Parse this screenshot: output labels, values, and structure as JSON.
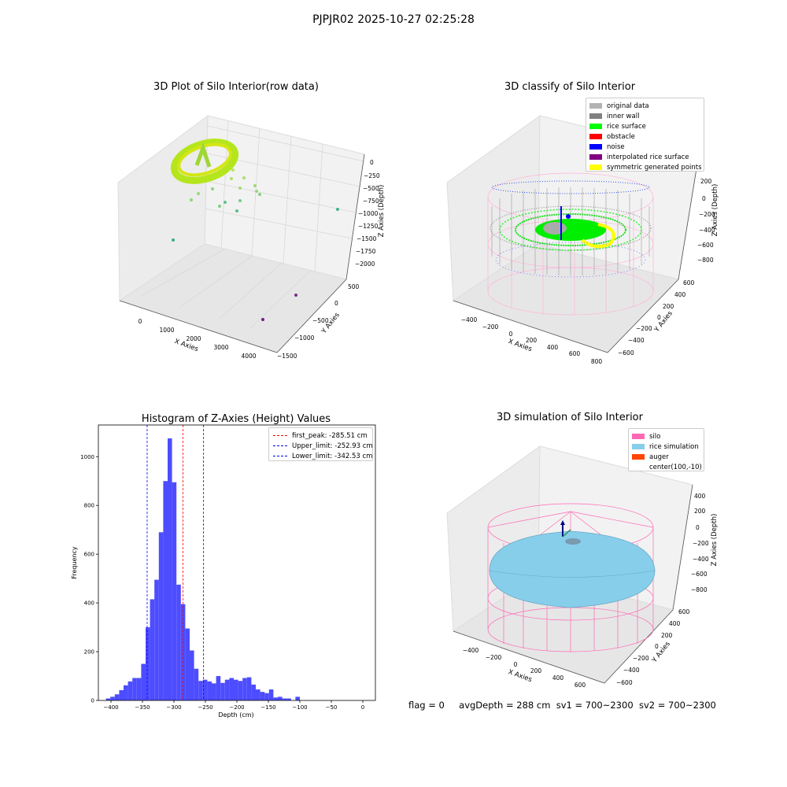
{
  "figure": {
    "suptitle": "PJPJR02 2025-10-27 02:25:28"
  },
  "panels": {
    "raw": {
      "title": "3D Plot of Silo Interior(row data)",
      "xlabel": "X Axies",
      "ylabel": "Y Axies",
      "zlabel": "Z Axies (Depth)",
      "xticks": [
        "0",
        "1000",
        "2000",
        "3000",
        "4000"
      ],
      "yticks": [
        "500",
        "0",
        "−500",
        "−1000",
        "−1500"
      ],
      "zticks": [
        "0",
        "−250",
        "−500",
        "−750",
        "−1000",
        "−1250",
        "−1500",
        "−1750",
        "−2000"
      ]
    },
    "classify": {
      "title": "3D classify of Silo Interior",
      "xlabel": "X Axies",
      "ylabel": "Y Axies",
      "zlabel": "Z Axies (Depth)",
      "xticks": [
        "−400",
        "−200",
        "0",
        "200",
        "400",
        "600",
        "800"
      ],
      "yticks": [
        "600",
        "400",
        "200",
        "0",
        "−200",
        "−400",
        "−600"
      ],
      "zticks": [
        "200",
        "0",
        "−200",
        "−400",
        "−600",
        "−800"
      ],
      "legend": [
        {
          "label": "original data",
          "color": "#b3b3b3"
        },
        {
          "label": "inner wall",
          "color": "#808080"
        },
        {
          "label": "rice surface",
          "color": "#00ff00"
        },
        {
          "label": "obstacle",
          "color": "#ff0000"
        },
        {
          "label": "noise",
          "color": "#0000ff"
        },
        {
          "label": "interpolated rice surface",
          "color": "#800080"
        },
        {
          "label": "symmetric generated points",
          "color": "#ffff00"
        }
      ]
    },
    "simulation": {
      "title": "3D simulation of Silo Interior",
      "xlabel": "X Axies",
      "ylabel": "Y Axies",
      "zlabel": "Z Axies (Depth)",
      "xticks": [
        "−400",
        "−200",
        "0",
        "200",
        "400",
        "600"
      ],
      "yticks": [
        "600",
        "400",
        "200",
        "0",
        "−200",
        "−400",
        "−600"
      ],
      "zticks": [
        "400",
        "200",
        "0",
        "−200",
        "−400",
        "−600",
        "−800"
      ],
      "legend": [
        {
          "label": "silo",
          "color": "#ff69b4"
        },
        {
          "label": "rice simulation",
          "color": "#87ceeb"
        },
        {
          "label": "auger",
          "color": "#ff4500"
        },
        {
          "label": "center(100,-10)",
          "color": "#ffffff"
        }
      ]
    }
  },
  "footer": {
    "flag": "flag = 0",
    "avg_depth": "avgDepth = 288 cm",
    "sv1": "sv1 = 700~2300",
    "sv2": "sv2 = 700~2300"
  },
  "chart_data": [
    {
      "type": "bar",
      "title": "Histogram of Z-Axies (Height) Values",
      "xlabel": "Depth (cm)",
      "ylabel": "Frequency",
      "xlim": [
        -420,
        20
      ],
      "ylim": [
        0,
        1130
      ],
      "bin_width": 7.0,
      "bin_start": -408,
      "values": [
        8,
        15,
        25,
        42,
        62,
        78,
        92,
        92,
        150,
        300,
        415,
        495,
        690,
        900,
        1075,
        895,
        475,
        395,
        295,
        205,
        130,
        80,
        85,
        78,
        70,
        100,
        72,
        85,
        92,
        85,
        80,
        92,
        95,
        65,
        45,
        35,
        30,
        45,
        12,
        15,
        8,
        8,
        0,
        15
      ],
      "bar_color": "#4d4dff",
      "xticks": [
        -400,
        -350,
        -300,
        -250,
        -200,
        -150,
        -100,
        -50,
        0
      ],
      "xtick_labels": [
        "−400",
        "−350",
        "−300",
        "−250",
        "−200",
        "−150",
        "−100",
        "−50",
        "0"
      ],
      "yticks": [
        0,
        200,
        400,
        600,
        800,
        1000
      ],
      "ytick_labels": [
        "0",
        "200",
        "400",
        "600",
        "800",
        "1000"
      ],
      "vlines": [
        {
          "label": "first_peak: -285.51 cm",
          "x": -285.51,
          "color": "#ff0000"
        },
        {
          "label": "Upper_limit: -252.93 cm",
          "x": -252.93,
          "color": "#0000ff"
        },
        {
          "label": "Lower_limit: -342.53 cm",
          "x": -342.53,
          "color": "#0000ff"
        }
      ],
      "legend_position": "upper right"
    }
  ]
}
